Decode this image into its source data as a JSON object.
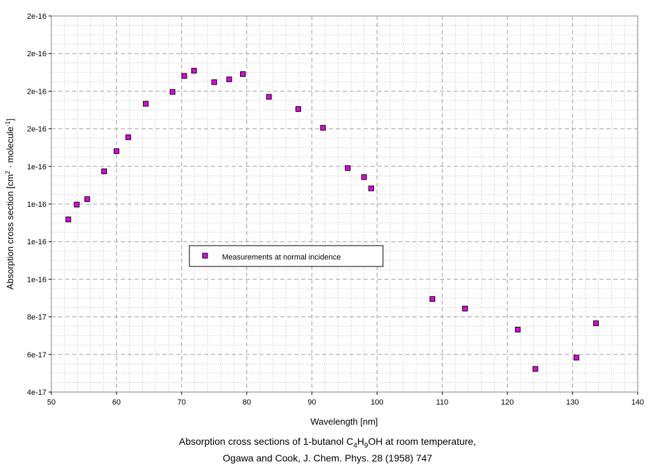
{
  "chart_data": {
    "type": "scatter",
    "xlabel": "Wavelength [nm]",
    "ylabel_parts": [
      "Absorption cross section [cm",
      "2",
      " · molecule",
      "-1",
      "]"
    ],
    "xlim": [
      50,
      140
    ],
    "ylim": [
      4e-17,
      2.4e-16
    ],
    "x_ticks": [
      50,
      60,
      70,
      80,
      90,
      100,
      110,
      120,
      130,
      140
    ],
    "x_tick_labels": [
      "50",
      "60",
      "70",
      "80",
      "90",
      "100",
      "110",
      "120",
      "130",
      "140"
    ],
    "y_ticks": [
      4e-17,
      6e-17,
      8e-17,
      1e-16,
      1.2e-16,
      1.4e-16,
      1.6e-16,
      1.8e-16,
      2e-16,
      2.2e-16,
      2.4e-16
    ],
    "y_tick_labels": [
      "4e-17",
      "6e-17",
      "8e-17",
      "1e-16",
      "1e-16",
      "1e-16",
      "1e-16",
      "2e-16",
      "2e-16",
      "2e-16",
      "2e-16"
    ],
    "grid": true,
    "legend_position": "center-left",
    "series": [
      {
        "name": "Measurements at normal incidence",
        "color": "#e600e6",
        "x": [
          52.6,
          53.9,
          55.5,
          58.1,
          60.0,
          61.8,
          64.5,
          68.6,
          70.4,
          71.9,
          75.0,
          77.3,
          79.4,
          83.4,
          87.9,
          91.7,
          95.5,
          98.0,
          99.1,
          108.5,
          113.5,
          121.6,
          124.3,
          130.6,
          133.6
        ],
        "y": [
          1.318e-16,
          1.397e-16,
          1.426e-16,
          1.574e-16,
          1.681e-16,
          1.755e-16,
          1.933e-16,
          1.996e-16,
          2.081e-16,
          2.109e-16,
          2.048e-16,
          2.063e-16,
          2.091e-16,
          1.97e-16,
          1.905e-16,
          1.805e-16,
          1.591e-16,
          1.543e-16,
          1.483e-16,
          8.95e-17,
          8.44e-17,
          7.32e-17,
          5.23e-17,
          5.83e-17,
          7.66e-17
        ]
      }
    ]
  },
  "caption": {
    "line1_a": "Absorption cross sections of 1-butanol C",
    "line1_sub1": "4",
    "line1_b": "H",
    "line1_sub2": "9",
    "line1_c": "OH at room temperature,",
    "line2": "Ogawa and Cook, J. Chem. Phys. 28 (1958) 747"
  }
}
